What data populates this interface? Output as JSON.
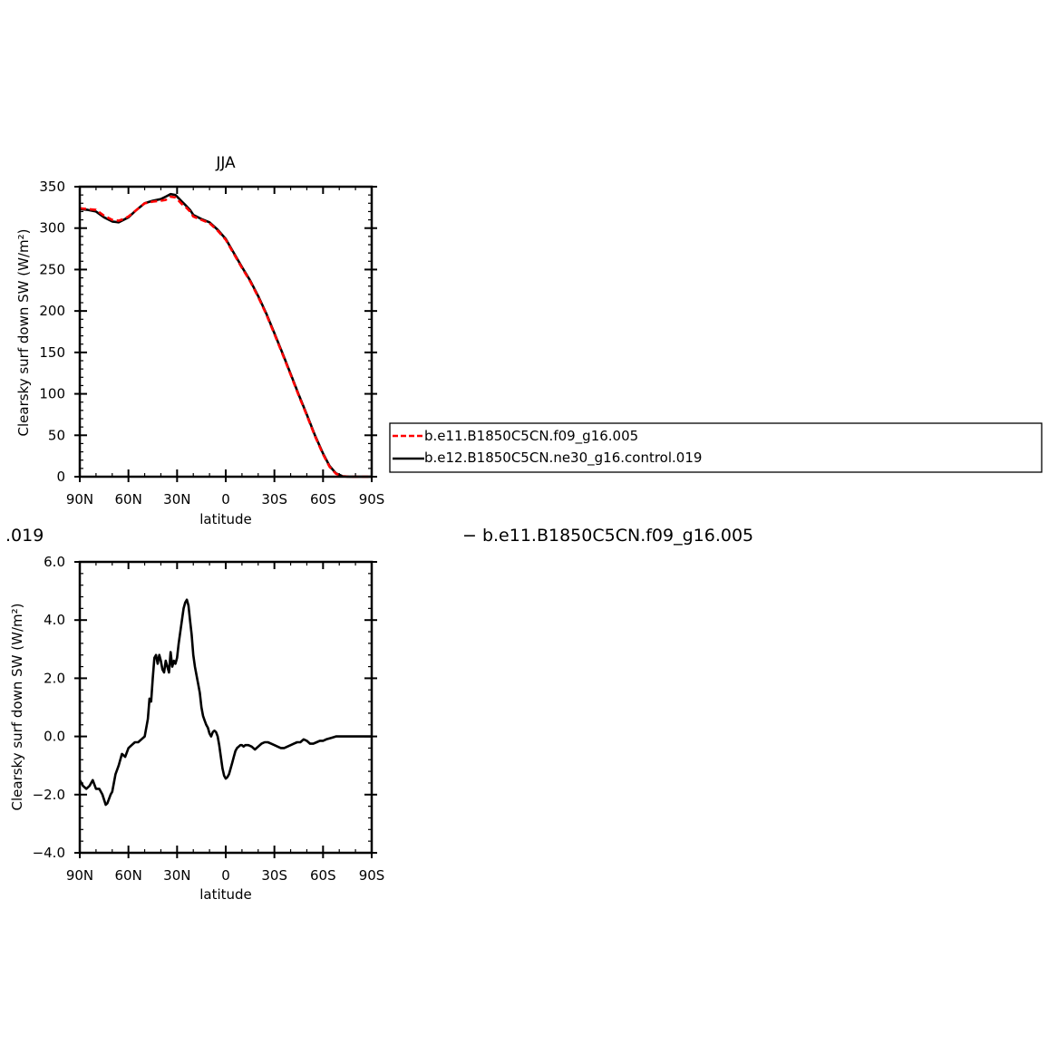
{
  "colors": {
    "background": "#ffffff",
    "axis": "#000000",
    "series_black": "#000000",
    "series_red": "#ff0000"
  },
  "chart_data": [
    {
      "type": "line",
      "title": "JJA",
      "xlabel": "latitude",
      "ylabel": "Clearsky surf down SW (W/m²)",
      "xlim": [
        90,
        -90
      ],
      "ylim": [
        0,
        350
      ],
      "xticks": [
        90,
        60,
        30,
        0,
        -30,
        -60,
        -90
      ],
      "xtick_labels": [
        "90N",
        "60N",
        "30N",
        "0",
        "30S",
        "60S",
        "90S"
      ],
      "yticks": [
        0,
        50,
        100,
        150,
        200,
        250,
        300,
        350
      ],
      "ytick_labels": [
        "0",
        "50",
        "100",
        "150",
        "200",
        "250",
        "300",
        "350"
      ],
      "grid": false,
      "legend_placement": "right, outside plot",
      "legend": [
        {
          "label": "b.e11.B1850C5CN.f09_g16.005",
          "color": "#ff0000",
          "dash": "dashed"
        },
        {
          "label": "b.e12.B1850C5CN.ne30_g16.control.019",
          "color": "#000000",
          "dash": "solid"
        }
      ],
      "series": [
        {
          "name": "b.e12.B1850C5CN.ne30_g16.control.019",
          "color": "#000000",
          "dash": "solid",
          "x": [
            90,
            85,
            80,
            75,
            70,
            66,
            63,
            60,
            55,
            50,
            45,
            40,
            37,
            34,
            31,
            29,
            27,
            25,
            22,
            20,
            15,
            10,
            5,
            0,
            -5,
            -10,
            -15,
            -20,
            -25,
            -30,
            -35,
            -40,
            -45,
            -50,
            -55,
            -60,
            -64,
            -68,
            -72,
            -76,
            -80,
            -85,
            -90
          ],
          "y": [
            323,
            322,
            320,
            313,
            308,
            307,
            310,
            313,
            322,
            330,
            333,
            335,
            338,
            341,
            340,
            336,
            332,
            328,
            322,
            316,
            311,
            307,
            298,
            287,
            270,
            253,
            237,
            218,
            197,
            173,
            149,
            124,
            99,
            75,
            50,
            28,
            13,
            4,
            0.5,
            0,
            0,
            0,
            0
          ]
        },
        {
          "name": "b.e11.B1850C5CN.f09_g16.005",
          "color": "#ff0000",
          "dash": "dashed",
          "x": [
            90,
            85,
            80,
            75,
            70,
            66,
            63,
            60,
            55,
            50,
            45,
            40,
            37,
            34,
            31,
            29,
            27,
            25,
            22,
            20,
            15,
            10,
            5,
            0,
            -5,
            -10,
            -15,
            -20,
            -25,
            -30,
            -35,
            -40,
            -45,
            -50,
            -55,
            -60,
            -64,
            -68,
            -72,
            -76,
            -80,
            -85,
            -90
          ],
          "y": [
            324,
            323,
            322,
            315,
            310,
            309,
            311,
            314,
            322,
            330,
            332,
            333,
            334,
            338,
            337,
            333,
            329,
            326,
            320,
            314,
            310,
            306,
            297,
            286,
            269,
            252,
            236,
            217,
            196,
            172,
            148,
            123,
            98,
            74,
            49,
            27,
            12,
            3.5,
            0.5,
            0,
            0,
            0,
            0
          ]
        }
      ]
    },
    {
      "type": "line",
      "title": "",
      "xlabel": "latitude",
      "ylabel": "Clearsky surf down SW (W/m²)",
      "xlim": [
        90,
        -90
      ],
      "ylim": [
        -4,
        6
      ],
      "xticks": [
        90,
        60,
        30,
        0,
        -30,
        -60,
        -90
      ],
      "xtick_labels": [
        "90N",
        "60N",
        "30N",
        "0",
        "30S",
        "60S",
        "90S"
      ],
      "yticks": [
        -4,
        -2,
        0,
        2,
        4,
        6
      ],
      "ytick_labels": [
        "−4.0",
        "−2.0",
        "0.0",
        "2.0",
        "4.0",
        "6.0"
      ],
      "grid": false,
      "left_label": ".019",
      "right_label": "− b.e11.B1850C5CN.f09_g16.005",
      "series": [
        {
          "color": "#000000",
          "dash": "solid",
          "x": [
            90,
            88,
            86,
            84,
            82,
            80,
            78,
            76,
            74,
            73,
            71,
            70,
            69,
            68,
            66,
            64,
            62,
            60,
            58,
            56,
            54,
            52,
            50,
            48,
            47,
            46,
            45,
            44,
            43,
            42,
            41,
            40,
            39,
            38,
            37,
            36,
            35,
            34,
            33,
            32,
            31,
            30,
            29,
            28,
            27,
            26,
            25,
            24,
            23,
            22,
            21,
            20,
            19,
            18,
            17,
            16,
            15,
            14,
            13,
            12,
            11,
            10,
            9,
            8,
            7,
            6,
            5,
            4,
            3,
            2,
            1,
            0,
            -1,
            -2,
            -3,
            -4,
            -5,
            -6,
            -7,
            -8,
            -9,
            -10,
            -11,
            -12,
            -14,
            -16,
            -18,
            -20,
            -22,
            -24,
            -26,
            -28,
            -30,
            -32,
            -34,
            -36,
            -38,
            -40,
            -42,
            -44,
            -46,
            -48,
            -50,
            -52,
            -54,
            -56,
            -58,
            -60,
            -62,
            -65,
            -68,
            -71,
            -74,
            -77,
            -80,
            -83,
            -86,
            -90
          ],
          "y": [
            -1.5,
            -1.7,
            -1.8,
            -1.7,
            -1.5,
            -1.8,
            -1.8,
            -2.0,
            -2.35,
            -2.3,
            -2.0,
            -1.9,
            -1.6,
            -1.3,
            -1.0,
            -0.6,
            -0.7,
            -0.4,
            -0.3,
            -0.2,
            -0.2,
            -0.1,
            0.0,
            0.6,
            1.3,
            1.2,
            2.0,
            2.7,
            2.8,
            2.5,
            2.8,
            2.6,
            2.3,
            2.2,
            2.6,
            2.4,
            2.2,
            2.9,
            2.4,
            2.6,
            2.5,
            2.7,
            3.2,
            3.6,
            4.0,
            4.4,
            4.6,
            4.7,
            4.5,
            4.0,
            3.5,
            2.8,
            2.4,
            2.1,
            1.8,
            1.5,
            1.0,
            0.7,
            0.55,
            0.4,
            0.3,
            0.1,
            0.0,
            0.15,
            0.2,
            0.15,
            0.0,
            -0.3,
            -0.7,
            -1.1,
            -1.35,
            -1.45,
            -1.4,
            -1.3,
            -1.1,
            -0.9,
            -0.7,
            -0.5,
            -0.4,
            -0.35,
            -0.3,
            -0.3,
            -0.35,
            -0.3,
            -0.3,
            -0.35,
            -0.45,
            -0.35,
            -0.25,
            -0.2,
            -0.2,
            -0.25,
            -0.3,
            -0.35,
            -0.4,
            -0.4,
            -0.35,
            -0.3,
            -0.25,
            -0.2,
            -0.2,
            -0.1,
            -0.15,
            -0.25,
            -0.25,
            -0.2,
            -0.15,
            -0.15,
            -0.1,
            -0.05,
            0.0,
            0.0,
            0.0,
            0.0,
            0.0,
            0.0,
            0.0,
            0.0
          ]
        }
      ]
    }
  ]
}
